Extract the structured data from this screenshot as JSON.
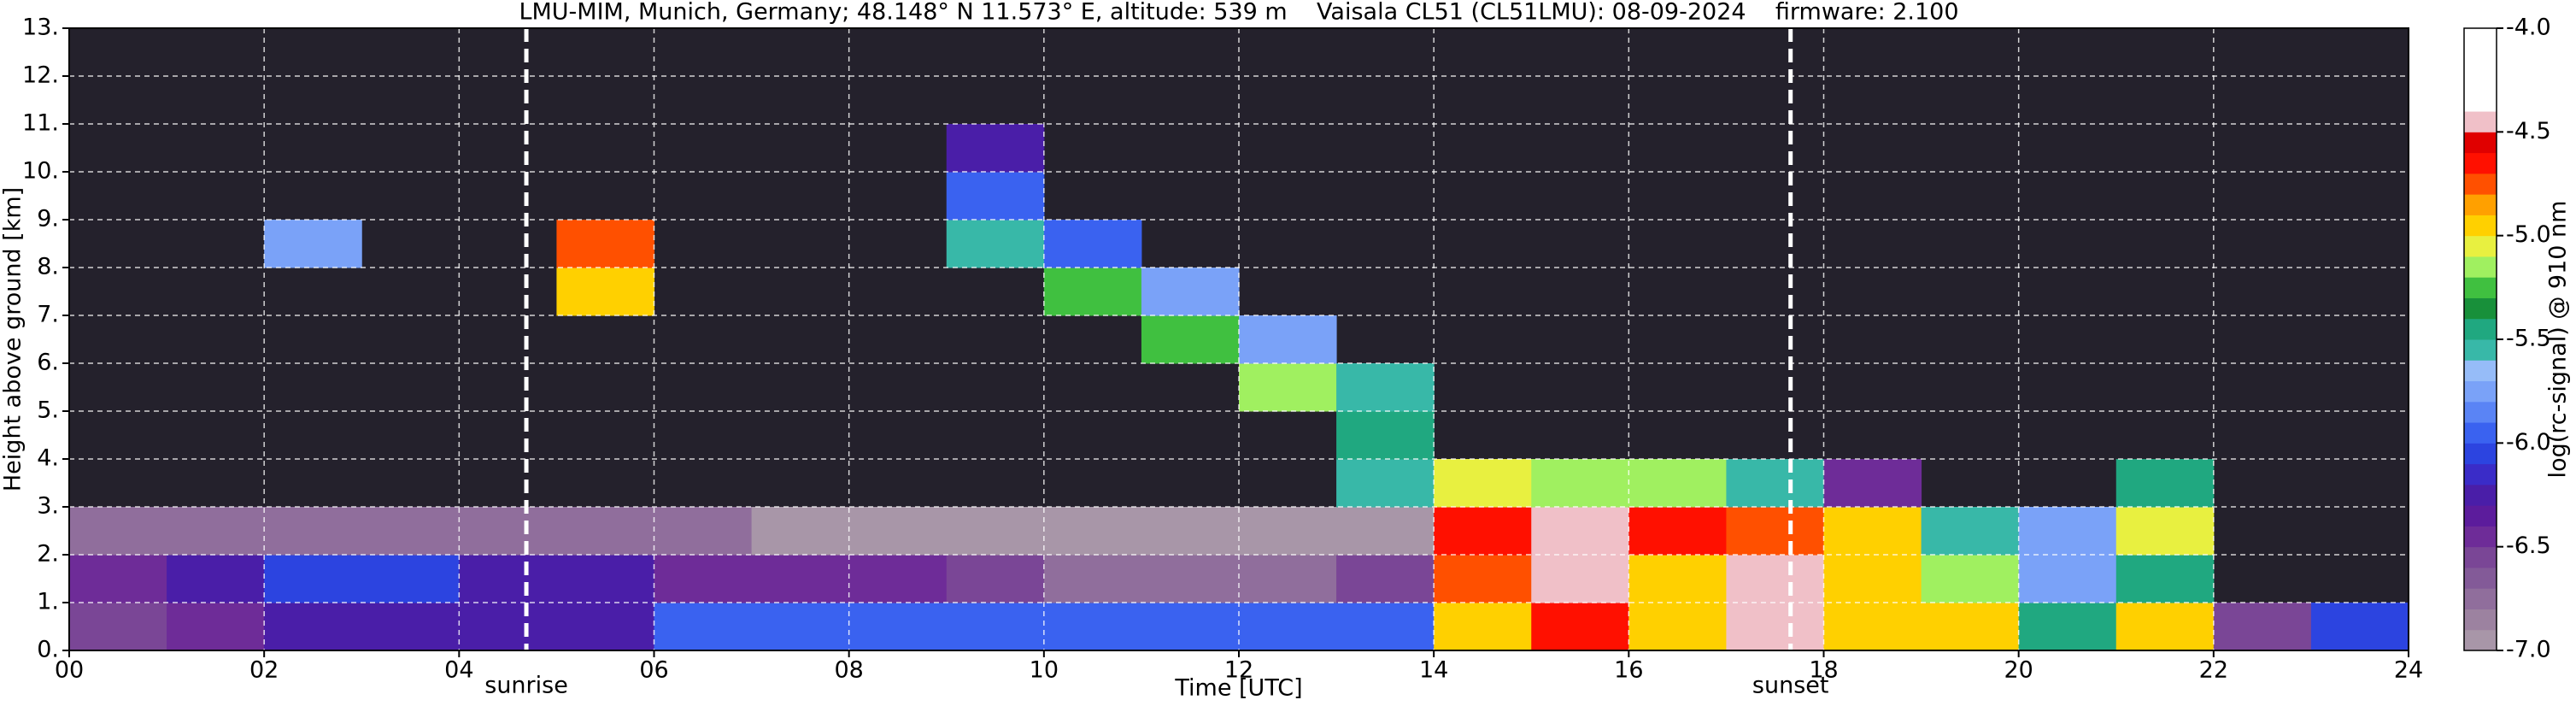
{
  "chart_data": {
    "type": "heatmap",
    "title": "LMU-MIM, Munich, Germany; 48.148° N 11.573° E, altitude: 539 m    Vaisala CL51 (CL51LMU): 08-09-2024    firmware: 2.100",
    "x_label": "Time [UTC]",
    "y_label": "Height above ground [km]",
    "colorbar_label": "log(rc-signal) @ 910 nm",
    "x": [
      0,
      1,
      2,
      3,
      4,
      5,
      6,
      7,
      8,
      9,
      10,
      11,
      12,
      13,
      14,
      15,
      16,
      17,
      18,
      19,
      20,
      21,
      22,
      23,
      24
    ],
    "y": [
      0,
      1,
      2,
      3,
      4,
      5,
      6,
      7,
      8,
      9,
      10,
      11,
      12,
      13
    ],
    "z": [
      [
        -6.6,
        -6.4,
        -6.3,
        -6.2,
        -6.3,
        -6.2,
        -6.0,
        -6.0,
        -6.0,
        -6.0,
        -6.0,
        -6.0,
        -5.9,
        -5.9,
        -4.9,
        -4.7,
        -4.9,
        -4.4,
        -4.9,
        -5.0,
        -5.4,
        -5.0,
        -6.6,
        -6.1
      ],
      [
        -6.4,
        -6.2,
        -6.1,
        -6.1,
        -6.2,
        -6.3,
        -6.4,
        -6.4,
        -6.5,
        -6.6,
        -6.7,
        -6.7,
        -6.8,
        -6.6,
        -4.8,
        -4.4,
        -4.9,
        -4.4,
        -5.0,
        -5.2,
        -5.7,
        -5.5,
        null,
        null
      ],
      [
        -6.7,
        -6.7,
        -6.7,
        -6.7,
        -6.8,
        -6.8,
        -6.8,
        -6.9,
        -6.9,
        -6.9,
        -6.9,
        -6.9,
        -6.9,
        -6.9,
        -4.7,
        -4.5,
        -4.7,
        -4.8,
        -5.0,
        -5.6,
        -5.8,
        -5.1,
        null,
        null
      ],
      [
        null,
        null,
        null,
        null,
        null,
        null,
        null,
        null,
        null,
        null,
        null,
        null,
        null,
        -5.6,
        -5.1,
        -5.2,
        -5.2,
        -5.6,
        -6.4,
        null,
        null,
        -5.4,
        null,
        null
      ],
      [
        null,
        null,
        null,
        null,
        null,
        null,
        null,
        null,
        null,
        null,
        null,
        null,
        null,
        -5.4,
        null,
        null,
        null,
        null,
        null,
        null,
        null,
        null,
        null,
        null
      ],
      [
        null,
        null,
        null,
        null,
        null,
        null,
        null,
        null,
        null,
        null,
        null,
        null,
        -5.2,
        -5.6,
        null,
        null,
        null,
        null,
        null,
        null,
        null,
        null,
        null,
        null
      ],
      [
        null,
        null,
        null,
        null,
        null,
        null,
        null,
        null,
        null,
        null,
        null,
        -5.3,
        -5.7,
        null,
        null,
        null,
        null,
        null,
        null,
        null,
        null,
        null,
        null,
        null
      ],
      [
        null,
        null,
        null,
        null,
        null,
        -5.0,
        null,
        null,
        null,
        null,
        -5.3,
        -5.8,
        null,
        null,
        null,
        null,
        null,
        null,
        null,
        null,
        null,
        null,
        null,
        null
      ],
      [
        null,
        null,
        -5.8,
        null,
        null,
        -4.8,
        null,
        null,
        null,
        -5.6,
        -5.9,
        null,
        null,
        null,
        null,
        null,
        null,
        null,
        null,
        null,
        null,
        null,
        null,
        null
      ],
      [
        null,
        null,
        null,
        null,
        null,
        null,
        null,
        null,
        null,
        -6.0,
        null,
        null,
        null,
        null,
        null,
        null,
        null,
        null,
        null,
        null,
        null,
        null,
        null,
        null
      ],
      [
        null,
        null,
        null,
        null,
        null,
        null,
        null,
        null,
        null,
        -6.3,
        null,
        null,
        null,
        null,
        null,
        null,
        null,
        null,
        null,
        null,
        null,
        null,
        null,
        null
      ],
      [
        null,
        null,
        null,
        null,
        null,
        null,
        null,
        null,
        null,
        null,
        null,
        null,
        null,
        null,
        null,
        null,
        null,
        null,
        null,
        null,
        null,
        null,
        null,
        null
      ],
      [
        null,
        null,
        null,
        null,
        null,
        null,
        null,
        null,
        null,
        null,
        null,
        null,
        null,
        null,
        null,
        null,
        null,
        null,
        null,
        null,
        null,
        null,
        null,
        null
      ]
    ],
    "zlim": [
      -7.0,
      -4.0
    ],
    "zticks": [
      {
        "value": -4.0,
        "label": "-4.0"
      },
      {
        "value": -4.5,
        "label": "-4.5"
      },
      {
        "value": -5.0,
        "label": "-5.0"
      },
      {
        "value": -5.5,
        "label": "-5.5"
      },
      {
        "value": -6.0,
        "label": "-6.0"
      },
      {
        "value": -6.5,
        "label": "-6.5"
      },
      {
        "value": -7.0,
        "label": "-7.0"
      }
    ],
    "colorscale": [
      "#a896a8",
      "#9c82a0",
      "#906e9c",
      "#835a98",
      "#7a4696",
      "#6e2c98",
      "#5c1c9c",
      "#4a1ea8",
      "#3a2cc8",
      "#2c44e0",
      "#3a62f0",
      "#5a84f5",
      "#7aa2f8",
      "#96bcf8",
      "#38b8a8",
      "#20a880",
      "#18903a",
      "#40c040",
      "#a0f060",
      "#e8f040",
      "#ffd000",
      "#ffa000",
      "#ff5000",
      "#ff1000",
      "#e00000",
      "#f0c0c8",
      "#ffffff",
      "#ffffff",
      "#ffffff",
      "#ffffff"
    ],
    "nan_color": "#24212c",
    "xlim": [
      0,
      24
    ],
    "ylim": [
      0,
      13
    ],
    "xticks": [
      {
        "value": 0,
        "label": "00"
      },
      {
        "value": 2,
        "label": "02"
      },
      {
        "value": 4,
        "label": "04"
      },
      {
        "value": 6,
        "label": "06"
      },
      {
        "value": 8,
        "label": "08"
      },
      {
        "value": 10,
        "label": "10"
      },
      {
        "value": 12,
        "label": "12"
      },
      14,
      16,
      18,
      20,
      22,
      24
    ],
    "yticks": [
      {
        "value": 0,
        "label": "0."
      },
      {
        "value": 1,
        "label": "1."
      },
      {
        "value": 2,
        "label": "2."
      },
      {
        "value": 3,
        "label": "3."
      },
      {
        "value": 4,
        "label": "4."
      },
      {
        "value": 5,
        "label": "5."
      },
      {
        "value": 6,
        "label": "6."
      },
      {
        "value": 7,
        "label": "7."
      },
      {
        "value": 8,
        "label": "8."
      },
      {
        "value": 9,
        "label": "9."
      },
      {
        "value": 10,
        "label": "10."
      },
      {
        "value": 11,
        "label": "11."
      },
      {
        "value": 12,
        "label": "12."
      },
      {
        "value": 13,
        "label": "13."
      }
    ],
    "grid": true,
    "annotations": [
      {
        "x": 4.69,
        "label": "sunrise"
      },
      {
        "x": 17.66,
        "label": "sunset"
      }
    ]
  }
}
